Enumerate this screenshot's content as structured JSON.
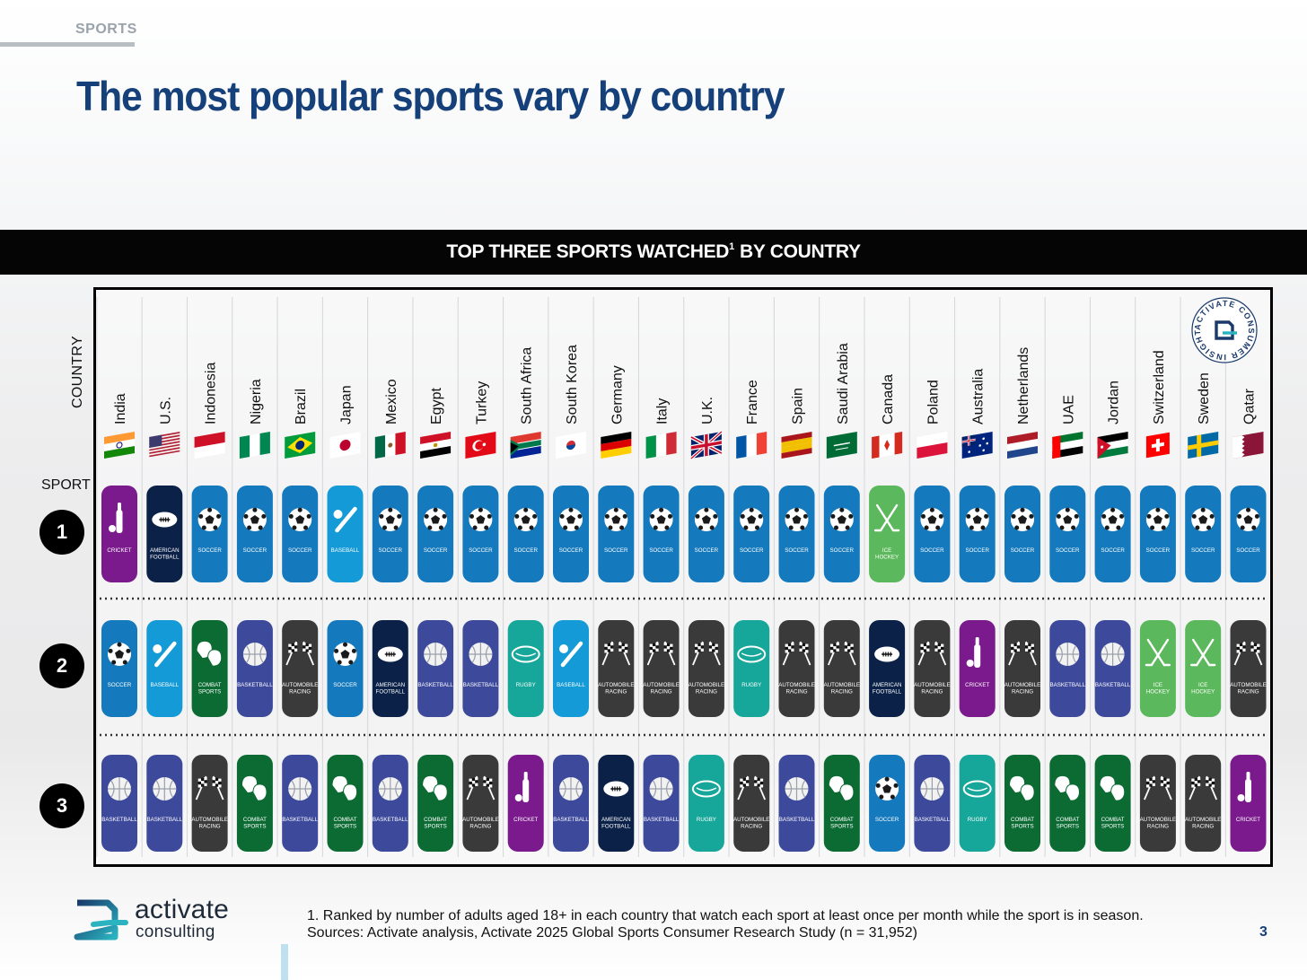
{
  "header": {
    "section": "SPORTS",
    "title": "The most popular sports vary by country"
  },
  "banner": {
    "text_main": "TOP THREE SPORTS WATCHED",
    "sup": "1",
    "text_end": "BY COUNTRY"
  },
  "axis": {
    "country_label": "COUNTRY",
    "sport_label": "SPORT",
    "ranks": [
      "1",
      "2",
      "3"
    ]
  },
  "seal_text": "ACTIVATE CONSUMER INSIGHT",
  "chart_data": {
    "type": "table",
    "title": "TOP THREE SPORTS WATCHED¹ BY COUNTRY",
    "countries": [
      "India",
      "U.S.",
      "Indonesia",
      "Nigeria",
      "Brazil",
      "Japan",
      "Mexico",
      "Egypt",
      "Turkey",
      "South Africa",
      "South Korea",
      "Germany",
      "Italy",
      "U.K.",
      "France",
      "Spain",
      "Saudi Arabia",
      "Canada",
      "Poland",
      "Australia",
      "Netherlands",
      "UAE",
      "Jordan",
      "Switzerland",
      "Sweden",
      "Qatar"
    ],
    "rank1": [
      "CRICKET",
      "AMERICAN FOOTBALL",
      "SOCCER",
      "SOCCER",
      "SOCCER",
      "BASEBALL",
      "SOCCER",
      "SOCCER",
      "SOCCER",
      "SOCCER",
      "SOCCER",
      "SOCCER",
      "SOCCER",
      "SOCCER",
      "SOCCER",
      "SOCCER",
      "SOCCER",
      "ICE HOCKEY",
      "SOCCER",
      "SOCCER",
      "SOCCER",
      "SOCCER",
      "SOCCER",
      "SOCCER",
      "SOCCER",
      "SOCCER"
    ],
    "rank2": [
      "SOCCER",
      "BASEBALL",
      "COMBAT SPORTS",
      "BASKETBALL",
      "AUTOMOBILE RACING",
      "SOCCER",
      "AMERICAN FOOTBALL",
      "BASKETBALL",
      "BASKETBALL",
      "RUGBY",
      "BASEBALL",
      "AUTOMOBILE RACING",
      "AUTOMOBILE RACING",
      "AUTOMOBILE RACING",
      "RUGBY",
      "AUTOMOBILE RACING",
      "AUTOMOBILE RACING",
      "AMERICAN FOOTBALL",
      "AUTOMOBILE RACING",
      "CRICKET",
      "AUTOMOBILE RACING",
      "BASKETBALL",
      "BASKETBALL",
      "ICE HOCKEY",
      "ICE HOCKEY",
      "AUTOMOBILE RACING"
    ],
    "rank3": [
      "BASKETBALL",
      "BASKETBALL",
      "AUTOMOBILE RACING",
      "COMBAT SPORTS",
      "BASKETBALL",
      "COMBAT SPORTS",
      "BASKETBALL",
      "COMBAT SPORTS",
      "AUTOMOBILE RACING",
      "CRICKET",
      "BASKETBALL",
      "AMERICAN FOOTBALL",
      "BASKETBALL",
      "RUGBY",
      "AUTOMOBILE RACING",
      "BASKETBALL",
      "COMBAT SPORTS",
      "SOCCER",
      "BASKETBALL",
      "RUGBY",
      "COMBAT SPORTS",
      "COMBAT SPORTS",
      "COMBAT SPORTS",
      "AUTOMOBILE RACING",
      "AUTOMOBILE RACING",
      "CRICKET"
    ]
  },
  "sport_colors": {
    "SOCCER": "#1479bd",
    "CRICKET": "#7a1a8c",
    "AMERICAN FOOTBALL": "#0b2148",
    "BASEBALL": "#149ad6",
    "ICE HOCKEY": "#5cb85c",
    "COMBAT SPORTS": "#0b6b33",
    "BASKETBALL": "#3d4a9c",
    "AUTOMOBILE RACING": "#3a3a3a",
    "RUGBY": "#17a69a"
  },
  "sport_icons": {
    "SOCCER": "soccer-ball-icon",
    "CRICKET": "cricket-bat-icon",
    "AMERICAN FOOTBALL": "american-football-icon",
    "BASEBALL": "baseball-bat-icon",
    "ICE HOCKEY": "hockey-sticks-icon",
    "COMBAT SPORTS": "boxing-gloves-icon",
    "BASKETBALL": "basketball-icon",
    "AUTOMOBILE RACING": "checkered-flags-icon",
    "RUGBY": "rugby-ball-icon"
  },
  "footnote": {
    "line1": "1. Ranked by number of adults aged 18+ in each country that watch each sport at least once per month while the sport is in season.",
    "line2": "Sources: Activate analysis, Activate 2025 Global Sports Consumer Research Study (n = 31,952)"
  },
  "logo": {
    "word1": "activate",
    "word2": "consulting"
  },
  "page_number": "3"
}
